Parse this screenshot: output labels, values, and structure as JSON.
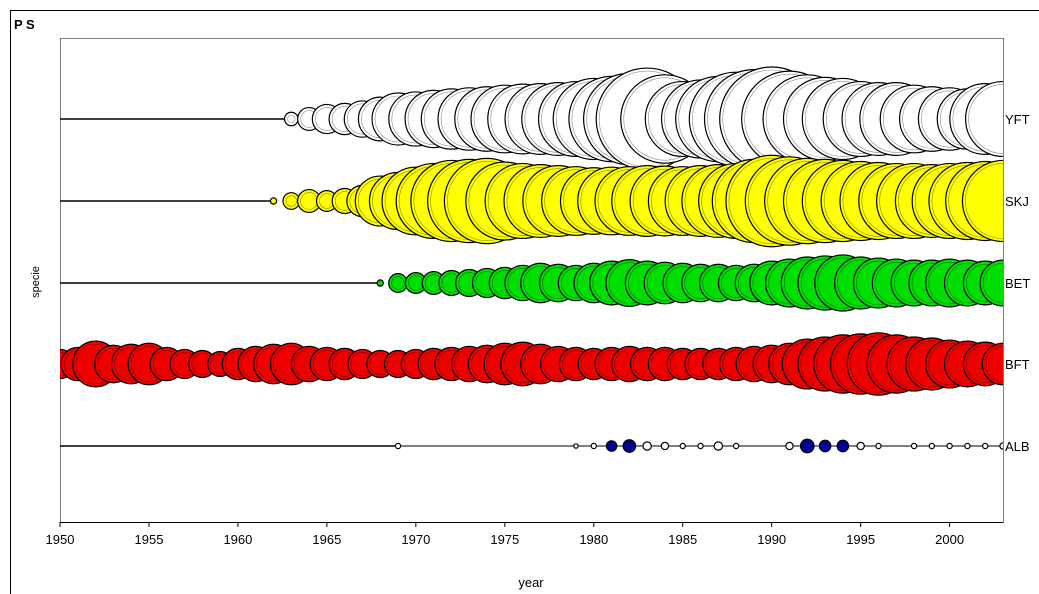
{
  "chart_data": {
    "type": "scatter",
    "title": "P S",
    "xlabel": "year",
    "ylabel": "specie",
    "xlim": [
      1950,
      2003
    ],
    "xticks": [
      1950,
      1955,
      1960,
      1965,
      1970,
      1975,
      1980,
      1985,
      1990,
      1995,
      2000
    ],
    "grid": false,
    "series": [
      {
        "name": "YFT",
        "color": "#ffffff",
        "x": [
          1963,
          1964,
          1965,
          1966,
          1967,
          1968,
          1969,
          1970,
          1971,
          1972,
          1973,
          1974,
          1975,
          1976,
          1977,
          1978,
          1979,
          1980,
          1981,
          1982,
          1983,
          1984,
          1985,
          1986,
          1987,
          1988,
          1989,
          1990,
          1991,
          1992,
          1993,
          1994,
          1995,
          1996,
          1997,
          1998,
          1999,
          2000,
          2001,
          2002,
          2003
        ],
        "size": [
          0.13,
          0.22,
          0.28,
          0.3,
          0.35,
          0.42,
          0.5,
          0.52,
          0.55,
          0.58,
          0.6,
          0.62,
          0.65,
          0.67,
          0.68,
          0.7,
          0.72,
          0.78,
          0.82,
          0.88,
          0.98,
          0.85,
          0.72,
          0.75,
          0.82,
          0.9,
          0.95,
          1.0,
          0.92,
          0.85,
          0.8,
          0.78,
          0.72,
          0.7,
          0.7,
          0.65,
          0.62,
          0.6,
          0.58,
          0.68,
          0.72
        ]
      },
      {
        "name": "SKJ",
        "color": "#ffff00",
        "x": [
          1962,
          1963,
          1964,
          1965,
          1966,
          1967,
          1968,
          1969,
          1970,
          1971,
          1972,
          1973,
          1974,
          1975,
          1976,
          1977,
          1978,
          1979,
          1980,
          1981,
          1982,
          1983,
          1984,
          1985,
          1986,
          1987,
          1988,
          1989,
          1990,
          1991,
          1992,
          1993,
          1994,
          1995,
          1996,
          1997,
          1998,
          1999,
          2000,
          2001,
          2002,
          2003
        ],
        "size": [
          0.06,
          0.16,
          0.22,
          0.2,
          0.24,
          0.3,
          0.48,
          0.55,
          0.65,
          0.72,
          0.78,
          0.8,
          0.82,
          0.75,
          0.72,
          0.7,
          0.68,
          0.66,
          0.64,
          0.65,
          0.66,
          0.68,
          0.67,
          0.66,
          0.68,
          0.7,
          0.72,
          0.8,
          0.88,
          0.85,
          0.82,
          0.8,
          0.78,
          0.76,
          0.74,
          0.72,
          0.72,
          0.7,
          0.72,
          0.74,
          0.76,
          0.78
        ]
      },
      {
        "name": "BET",
        "color": "#00dd00",
        "x": [
          1968,
          1969,
          1970,
          1971,
          1972,
          1973,
          1974,
          1975,
          1976,
          1977,
          1978,
          1979,
          1980,
          1981,
          1982,
          1983,
          1984,
          1985,
          1986,
          1987,
          1988,
          1989,
          1990,
          1991,
          1992,
          1993,
          1994,
          1995,
          1996,
          1997,
          1998,
          1999,
          2000,
          2001,
          2002,
          2003
        ],
        "size": [
          0.06,
          0.18,
          0.2,
          0.22,
          0.24,
          0.26,
          0.28,
          0.3,
          0.34,
          0.38,
          0.36,
          0.34,
          0.38,
          0.42,
          0.45,
          0.42,
          0.4,
          0.38,
          0.36,
          0.36,
          0.34,
          0.36,
          0.42,
          0.46,
          0.5,
          0.52,
          0.54,
          0.5,
          0.48,
          0.46,
          0.44,
          0.44,
          0.46,
          0.44,
          0.42,
          0.44
        ]
      },
      {
        "name": "BFT",
        "color": "#ee0000",
        "x": [
          1950,
          1951,
          1952,
          1953,
          1954,
          1955,
          1956,
          1957,
          1958,
          1959,
          1960,
          1961,
          1962,
          1963,
          1964,
          1965,
          1966,
          1967,
          1968,
          1969,
          1970,
          1971,
          1972,
          1973,
          1974,
          1975,
          1976,
          1977,
          1978,
          1979,
          1980,
          1981,
          1982,
          1983,
          1984,
          1985,
          1986,
          1987,
          1988,
          1989,
          1990,
          1991,
          1992,
          1993,
          1994,
          1995,
          1996,
          1997,
          1998,
          1999,
          2000,
          2001,
          2002,
          2003
        ],
        "size": [
          0.28,
          0.32,
          0.44,
          0.36,
          0.38,
          0.4,
          0.32,
          0.28,
          0.26,
          0.24,
          0.3,
          0.34,
          0.38,
          0.4,
          0.34,
          0.32,
          0.3,
          0.28,
          0.26,
          0.26,
          0.28,
          0.3,
          0.32,
          0.34,
          0.36,
          0.4,
          0.42,
          0.38,
          0.34,
          0.32,
          0.3,
          0.32,
          0.34,
          0.32,
          0.32,
          0.3,
          0.3,
          0.3,
          0.32,
          0.34,
          0.36,
          0.4,
          0.48,
          0.52,
          0.56,
          0.58,
          0.6,
          0.56,
          0.52,
          0.5,
          0.46,
          0.44,
          0.42,
          0.4
        ]
      },
      {
        "name": "ALB",
        "color": "#ffffff",
        "x": [
          1969,
          1979,
          1980,
          1981,
          1982,
          1983,
          1984,
          1985,
          1986,
          1987,
          1988,
          1991,
          1992,
          1993,
          1994,
          1995,
          1996,
          1998,
          1999,
          2000,
          2001,
          2002,
          2003
        ],
        "size": [
          0.05,
          0.04,
          0.05,
          0.1,
          0.12,
          0.08,
          0.07,
          0.05,
          0.05,
          0.08,
          0.05,
          0.07,
          0.13,
          0.11,
          0.11,
          0.07,
          0.05,
          0.05,
          0.05,
          0.05,
          0.05,
          0.05,
          0.06
        ],
        "highlight_color": "#000099",
        "highlight_x": [
          1981,
          1982,
          1992,
          1993,
          1994
        ]
      }
    ]
  }
}
